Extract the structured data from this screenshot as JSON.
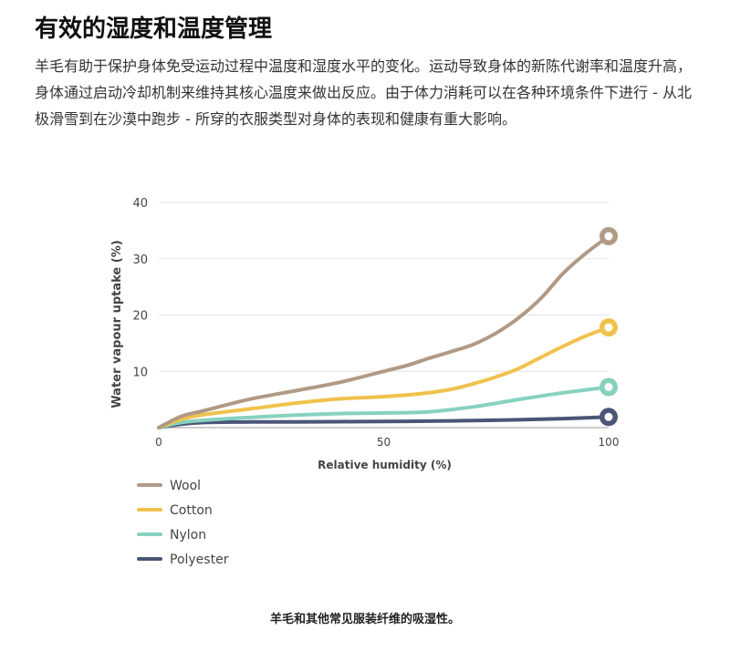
{
  "article": {
    "title": "有效的湿度和温度管理",
    "paragraph": "羊毛有助于保护身体免受运动过程中温度和湿度水平的变化。运动导致身体的新陈代谢率和温度升高，身体通过启动冷却机制来维持其核心温度来做出反应。由于体力消耗可以在各种环境条件下进行 - 从北极滑雪到在沙漠中跑步 - 所穿的衣服类型对身体的表现和健康有重大影响。"
  },
  "chart_data": {
    "type": "line",
    "title": "",
    "xlabel": "Relative humidity (%)",
    "ylabel": "Water vapour uptake (%)",
    "xlim": [
      0,
      100
    ],
    "ylim": [
      0,
      40
    ],
    "xticks": [
      0,
      50,
      100
    ],
    "yticks": [
      10,
      20,
      30,
      40
    ],
    "grid": true,
    "legend_position": "bottom-left",
    "series": [
      {
        "name": "Wool",
        "color": "#b09a85",
        "x": [
          0,
          5,
          10,
          20,
          30,
          40,
          50,
          55,
          60,
          65,
          70,
          75,
          80,
          85,
          90,
          95,
          100
        ],
        "y": [
          0,
          2,
          3,
          5,
          6.5,
          8,
          10,
          11,
          12.3,
          13.5,
          14.8,
          16.8,
          19.5,
          23,
          27.5,
          31,
          34
        ]
      },
      {
        "name": "Cotton",
        "color": "#f0c24c",
        "x": [
          0,
          5,
          10,
          20,
          30,
          40,
          50,
          58,
          65,
          70,
          75,
          80,
          85,
          90,
          95,
          100
        ],
        "y": [
          0,
          1.5,
          2.3,
          3.3,
          4.3,
          5.1,
          5.5,
          6,
          6.8,
          7.8,
          9,
          10.5,
          12.5,
          14.5,
          16.3,
          17.8
        ]
      },
      {
        "name": "Nylon",
        "color": "#86d2bf",
        "x": [
          0,
          5,
          10,
          20,
          30,
          40,
          50,
          60,
          70,
          80,
          90,
          100
        ],
        "y": [
          0,
          0.9,
          1.3,
          1.8,
          2.2,
          2.5,
          2.6,
          2.8,
          3.7,
          5,
          6.2,
          7.2
        ]
      },
      {
        "name": "Polyester",
        "color": "#4a5577",
        "x": [
          0,
          5,
          10,
          20,
          30,
          40,
          50,
          60,
          70,
          80,
          90,
          100
        ],
        "y": [
          0,
          0.6,
          0.9,
          1,
          1,
          1.05,
          1.1,
          1.15,
          1.25,
          1.4,
          1.6,
          1.9
        ]
      }
    ]
  },
  "caption": "羊毛和其他常见服装纤维的吸湿性。"
}
